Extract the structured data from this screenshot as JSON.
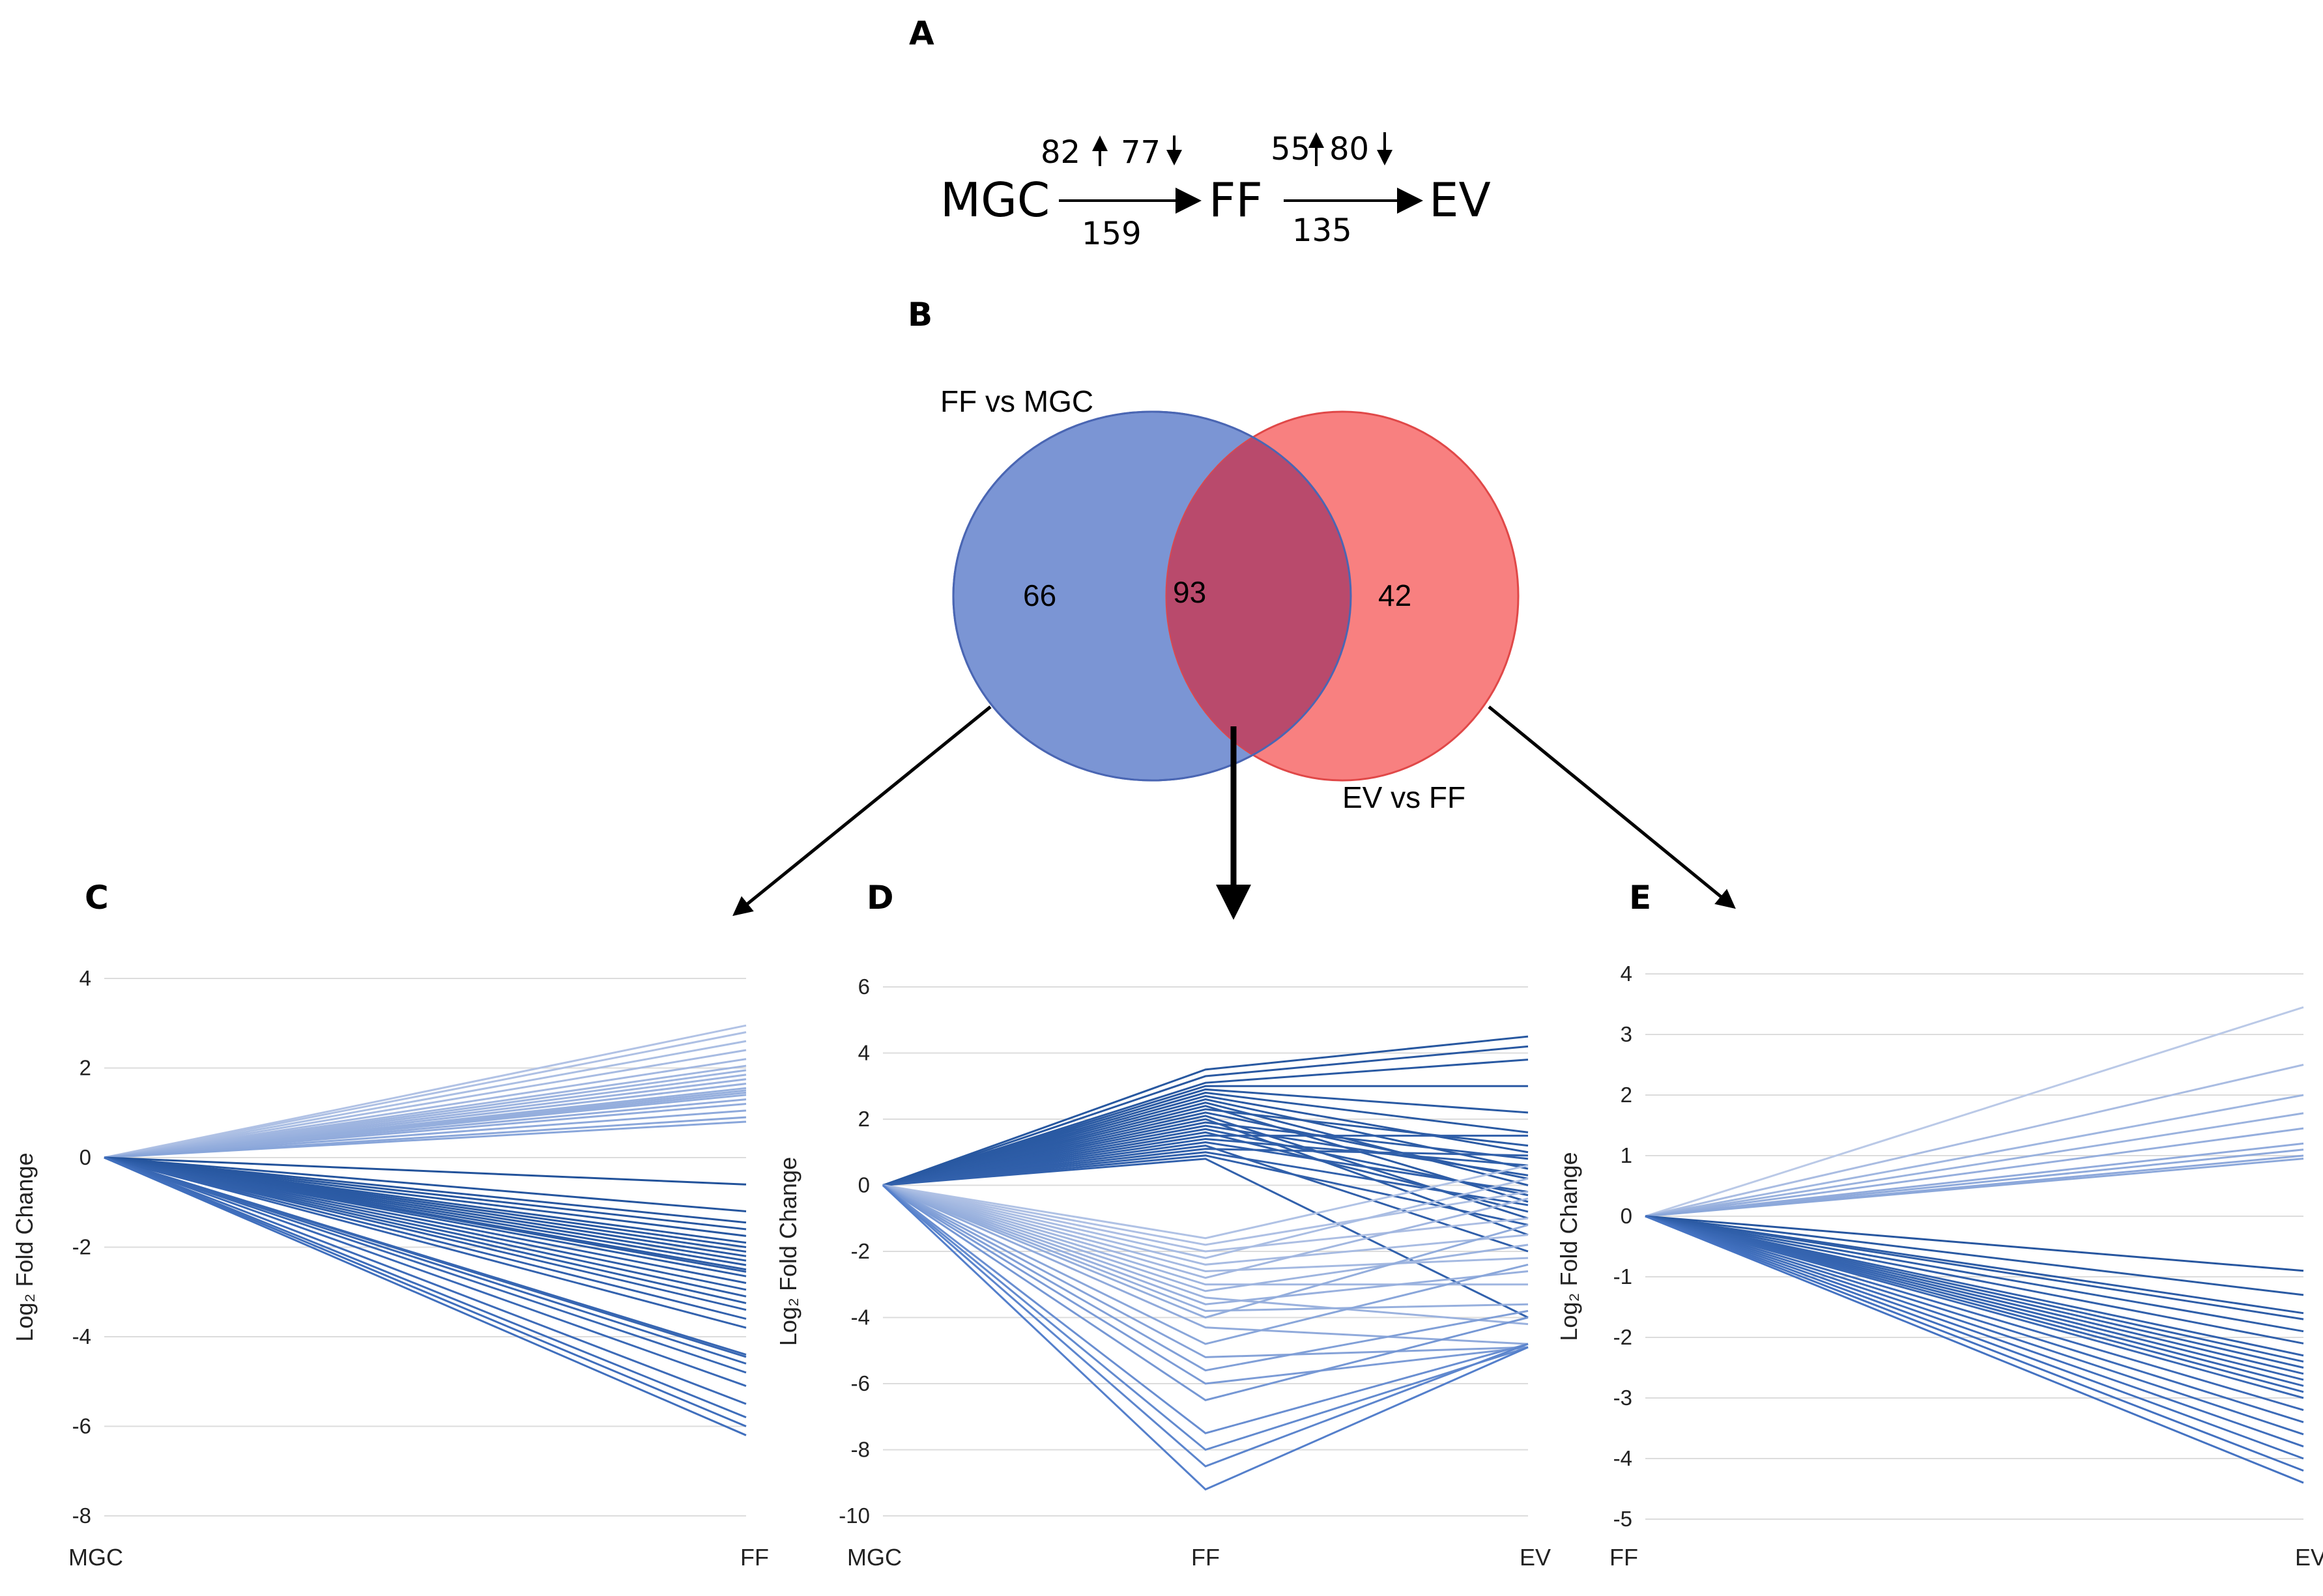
{
  "panels": {
    "A": "A",
    "B": "B",
    "C": "C",
    "D": "D",
    "E": "E"
  },
  "flow": {
    "nodes": [
      "MGC",
      "FF",
      "EV"
    ],
    "step1": {
      "up": "82",
      "down": "77",
      "total": "159"
    },
    "step2": {
      "up": "55",
      "down": "80",
      "total": "135"
    }
  },
  "venn": {
    "left_label": "FF vs MGC",
    "right_label": "EV vs FF",
    "left_only": "66",
    "overlap": "93",
    "right_only": "42",
    "left_color": "#7b95d4",
    "right_color": "#f88080",
    "overlap_color": "#b94a6c"
  },
  "chart_data": [
    {
      "type": "line",
      "panel": "C",
      "ylabel": "Log₂ Fold Change",
      "categories": [
        "MGC",
        "FF"
      ],
      "ylim": [
        -8,
        4
      ],
      "yticks": [
        4,
        2,
        0,
        -2,
        -4,
        -6,
        -8
      ],
      "series_end_values": [
        2.95,
        2.8,
        2.6,
        2.4,
        2.2,
        2.05,
        1.95,
        1.85,
        1.75,
        1.65,
        1.55,
        1.5,
        1.45,
        1.4,
        1.3,
        1.2,
        1.05,
        0.9,
        0.8,
        -0.6,
        -1.2,
        -1.45,
        -1.6,
        -1.75,
        -1.9,
        -2.0,
        -2.1,
        -2.2,
        -2.3,
        -2.4,
        -2.5,
        -2.55,
        -2.65,
        -2.8,
        -2.95,
        -3.1,
        -3.25,
        -3.4,
        -3.6,
        -3.8,
        -4.4,
        -4.45,
        -4.6,
        -4.8,
        -5.1,
        -5.5,
        -5.8,
        -6.0,
        -6.2
      ]
    },
    {
      "type": "line",
      "panel": "D",
      "ylabel": "Log₂ Fold Change",
      "categories": [
        "MGC",
        "FF",
        "EV"
      ],
      "ylim": [
        -10,
        6
      ],
      "yticks": [
        6,
        4,
        2,
        0,
        -2,
        -4,
        -6,
        -8,
        -10
      ],
      "series": [
        [
          0,
          3.5,
          4.5
        ],
        [
          0,
          3.3,
          4.2
        ],
        [
          0,
          3.1,
          3.8
        ],
        [
          0,
          3.0,
          3.0
        ],
        [
          0,
          2.9,
          2.2
        ],
        [
          0,
          2.8,
          1.6
        ],
        [
          0,
          2.7,
          1.0
        ],
        [
          0,
          2.6,
          0.5
        ],
        [
          0,
          2.5,
          0.0
        ],
        [
          0,
          2.4,
          -0.5
        ],
        [
          0,
          2.3,
          1.2
        ],
        [
          0,
          2.2,
          0.2
        ],
        [
          0,
          2.1,
          -1.0
        ],
        [
          0,
          2.0,
          -1.5
        ],
        [
          0,
          1.9,
          0.8
        ],
        [
          0,
          1.8,
          0.3
        ],
        [
          0,
          1.7,
          -0.3
        ],
        [
          0,
          1.6,
          -0.8
        ],
        [
          0,
          1.5,
          1.5
        ],
        [
          0,
          1.4,
          0.6
        ],
        [
          0,
          1.3,
          -0.2
        ],
        [
          0,
          1.2,
          -2.0
        ],
        [
          0,
          1.1,
          0.9
        ],
        [
          0,
          1.0,
          -0.6
        ],
        [
          0,
          0.9,
          -1.2
        ],
        [
          0,
          0.8,
          -4.0
        ],
        [
          0,
          -1.6,
          0.6
        ],
        [
          0,
          -1.8,
          -0.2
        ],
        [
          0,
          -2.0,
          -1.0
        ],
        [
          0,
          -2.2,
          0.2
        ],
        [
          0,
          -2.4,
          -1.5
        ],
        [
          0,
          -2.6,
          -2.2
        ],
        [
          0,
          -2.8,
          -0.4
        ],
        [
          0,
          -3.0,
          -3.0
        ],
        [
          0,
          -3.2,
          -1.8
        ],
        [
          0,
          -3.4,
          -4.2
        ],
        [
          0,
          -3.6,
          -2.6
        ],
        [
          0,
          -3.8,
          -3.6
        ],
        [
          0,
          -4.0,
          -1.2
        ],
        [
          0,
          -4.3,
          -4.8
        ],
        [
          0,
          -4.8,
          -2.4
        ],
        [
          0,
          -5.2,
          -4.9
        ],
        [
          0,
          -5.6,
          -3.8
        ],
        [
          0,
          -6.0,
          -4.9
        ],
        [
          0,
          -6.5,
          -4.0
        ],
        [
          0,
          -7.5,
          -4.8
        ],
        [
          0,
          -8.0,
          -4.9
        ],
        [
          0,
          -8.5,
          -4.8
        ],
        [
          0,
          -9.2,
          -4.9
        ]
      ]
    },
    {
      "type": "line",
      "panel": "E",
      "ylabel": "Log₂ Fold Change",
      "categories": [
        "FF",
        "EV"
      ],
      "ylim": [
        -5,
        4
      ],
      "yticks": [
        4,
        3,
        2,
        1,
        0,
        -1,
        -2,
        -3,
        -4,
        -5
      ],
      "series_end_values": [
        3.45,
        2.5,
        2.0,
        1.7,
        1.45,
        1.2,
        1.1,
        1.0,
        0.95,
        -0.9,
        -1.3,
        -1.6,
        -1.7,
        -1.9,
        -2.1,
        -2.3,
        -2.4,
        -2.5,
        -2.6,
        -2.7,
        -2.8,
        -2.9,
        -3.0,
        -3.2,
        -3.4,
        -3.6,
        -3.8,
        -4.0,
        -4.2,
        -4.4
      ]
    }
  ],
  "colors": {
    "line_dark": "#1f4f96",
    "line_mid": "#4a78c8",
    "line_light": "#c4d0ea"
  }
}
